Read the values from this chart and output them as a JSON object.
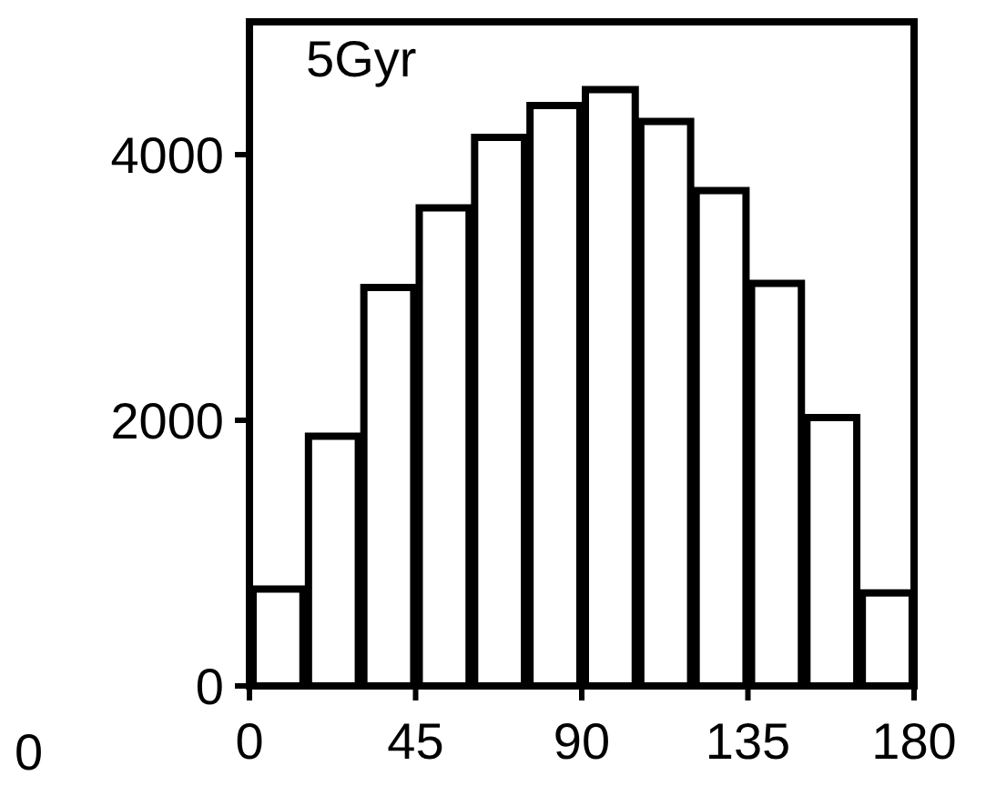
{
  "chart_data": {
    "type": "histogram",
    "title": "5Gyr",
    "bins": [
      0,
      15,
      30,
      45,
      60,
      75,
      90,
      105,
      120,
      135,
      150,
      165,
      180
    ],
    "values": [
      730,
      1880,
      3000,
      3600,
      4130,
      4370,
      4490,
      4250,
      3730,
      3030,
      2020,
      700
    ],
    "color": "#ffffff",
    "xlim": [
      0,
      180
    ],
    "xticks": [
      0,
      45,
      90,
      135,
      180
    ],
    "ylim": [
      0,
      5000
    ],
    "yticks": [
      0,
      2000,
      4000
    ],
    "annotations": [
      "0"
    ]
  }
}
